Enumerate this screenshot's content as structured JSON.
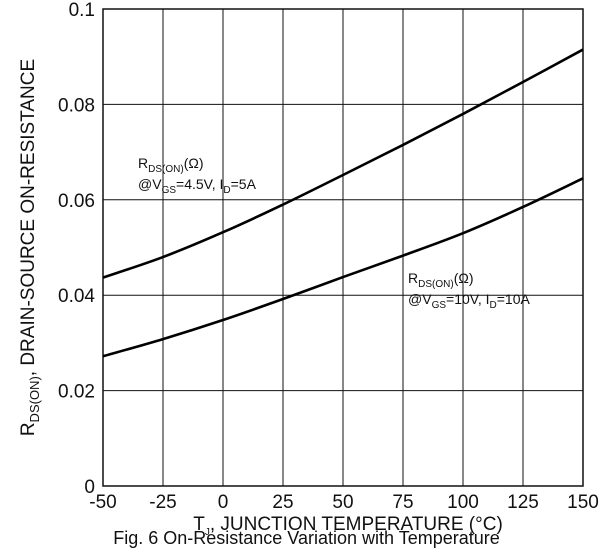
{
  "chart_data": {
    "type": "line",
    "xlabel": {
      "main": "T",
      "sub": "J",
      "rest": ", JUNCTION TEMPERATURE (°C)"
    },
    "ylabel": {
      "main": "R",
      "sub": "DS(ON)",
      "rest": ", DRAIN-SOURCE ON-RESISTANCE"
    },
    "xlim": [
      -50,
      150
    ],
    "ylim": [
      0,
      0.1
    ],
    "x_ticks": [
      "-50",
      "-25",
      "0",
      "25",
      "50",
      "75",
      "100",
      "125",
      "150"
    ],
    "y_ticks": [
      "0",
      "0.02",
      "0.04",
      "0.06",
      "0.08",
      "0.1"
    ],
    "grid": true,
    "x": [
      -50,
      -25,
      0,
      25,
      50,
      75,
      100,
      125,
      150
    ],
    "series": [
      {
        "label_lines": [
          {
            "a": "R",
            "sub": "DS(ON)",
            "b": "(Ω)"
          },
          {
            "a": "@V",
            "sub": "GS",
            "b": "=4.5V, I",
            "sub2": "D",
            "c": "=5A"
          }
        ],
        "values": [
          0.0437,
          0.048,
          0.0532,
          0.059,
          0.0652,
          0.0715,
          0.078,
          0.0847,
          0.0915
        ]
      },
      {
        "label_lines": [
          {
            "a": "R",
            "sub": "DS(ON)",
            "b": "(Ω)"
          },
          {
            "a": "@V",
            "sub": "GS",
            "b": "=10V, I",
            "sub2": "D",
            "c": "=10A"
          }
        ],
        "values": [
          0.0272,
          0.0308,
          0.0348,
          0.0392,
          0.0438,
          0.0483,
          0.053,
          0.0585,
          0.0645
        ]
      }
    ]
  },
  "caption": "Fig. 6 On-Resistance Variation with Temperature"
}
